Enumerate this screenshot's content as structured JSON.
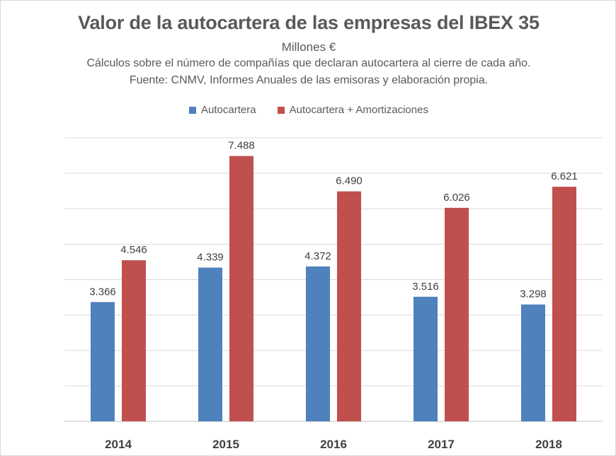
{
  "header": {
    "title": "Valor de la autocartera de las empresas del IBEX 35",
    "units": "Millones €",
    "note": "Cálculos sobre el número de compañías que declaran autocartera al cierre de cada año.",
    "source": "Fuente: CNMV, Informes Anuales de las emisoras y elaboración propia."
  },
  "legend": {
    "items": [
      {
        "label": "Autocartera",
        "color": "#4f81bd"
      },
      {
        "label": "Autocartera + Amortizaciones",
        "color": "#c0504d"
      }
    ]
  },
  "chart_data": {
    "type": "bar",
    "title": "Valor de la autocartera de las empresas del IBEX 35",
    "subtitle": "Millones €",
    "xlabel": "",
    "ylabel": "",
    "categories": [
      "2014",
      "2015",
      "2016",
      "2017",
      "2018"
    ],
    "series": [
      {
        "name": "Autocartera",
        "color": "#4f81bd",
        "values": [
          3366,
          4339,
          4372,
          3516,
          3298
        ],
        "labels": [
          "3.366",
          "4.339",
          "4.372",
          "3.516",
          "3.298"
        ]
      },
      {
        "name": "Autocartera + Amortizaciones",
        "color": "#c0504d",
        "values": [
          4546,
          7488,
          6490,
          6026,
          6621
        ],
        "labels": [
          "4.546",
          "7.488",
          "6.490",
          "6.026",
          "6.621"
        ]
      }
    ],
    "ylim": [
      0,
      8000
    ],
    "y_gridlines": [
      0,
      1000,
      2000,
      3000,
      4000,
      5000,
      6000,
      7000,
      8000
    ],
    "y_tick_labels_shown": false,
    "grid": true,
    "legend_position": "top"
  }
}
